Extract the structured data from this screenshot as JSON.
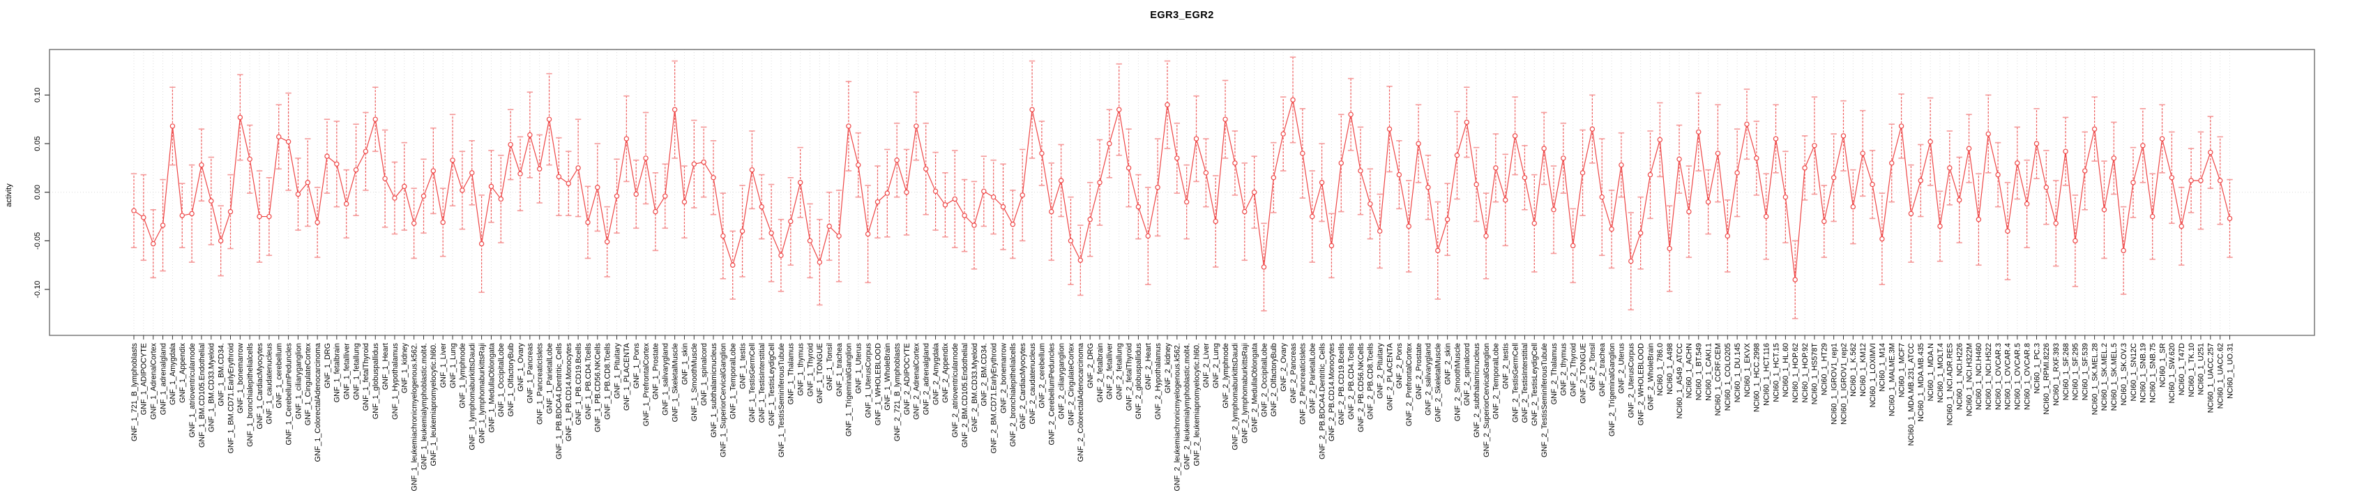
{
  "title": "EGR3_EGR2",
  "chart_data": {
    "type": "line",
    "title": "EGR3_EGR2",
    "xlabel": "",
    "ylabel": "activity",
    "ylim": [
      -0.147,
      0.147
    ],
    "yticks": [
      -0.1,
      -0.05,
      0.0,
      0.05,
      0.1
    ],
    "ytick_labels": [
      "-0.10",
      "-0.05",
      "0.00",
      "0.05",
      "0.10"
    ],
    "legend_position": "none",
    "grid": "dotted vertical gridline at every category; dotted horizontal line at zero",
    "marker": "open-circle",
    "line_color": "#ee4444",
    "errorbar_stem_color": "#ef5a5a",
    "errorbar_cap_color": "#f59999",
    "gridline_color": "#dcdcdc",
    "box_color": "#6e6e6e",
    "categories": [
      "GNF_1_721_B_lymphoblasts",
      "GNF_1_ADIPOCYTE",
      "GNF_1_AdrenalCortex",
      "GNF_1_adrenalgland",
      "GNF_1_Amygdala",
      "GNF_1_Appendix",
      "GNF_1_atrioventricularnode",
      "GNF_1_BM.CD105.Endothelial",
      "GNF_1_BM.CD33.Myeloid",
      "GNF_1_BM.CD34.",
      "GNF_1_BM.CD71.EarlyErythroid",
      "GNF_1_bonemarrow",
      "GNF_1_bronchialepithelialcells",
      "GNF_1_CardiacMyocytes",
      "GNF_1_caudatenucleus",
      "GNF_1_cerebellum",
      "GNF_1_CerebellumPeduncles",
      "GNF_1_ciliaryganglion",
      "GNF_1_CingulateCortex",
      "GNF_1_ColorectalAdenocarcinoma",
      "GNF_1_DRG",
      "GNF_1_fetalbrain",
      "GNF_1_fetalliver",
      "GNF_1_fetallung",
      "GNF_1_fetalThyroid",
      "GNF_1_globuspallidus",
      "GNF_1_Heart",
      "GNF_1_Hypothalamus",
      "GNF_1_kidney",
      "GNF_1_leukemiachronicmyelogenous.k562.",
      "GNF_1_leukemialymphoblastic.molt4.",
      "GNF_1_leukemiapromyelocytic.hl60.",
      "GNF_1_Liver",
      "GNF_1_Lung",
      "GNF_1_lymphnode",
      "GNF_1_lymphomaburkittsDaudi",
      "GNF_1_lymphomaburkittsRaji",
      "GNF_1_MedullaOblongata",
      "GNF_1_OccipitalLobe",
      "GNF_1_OlfactoryBulb",
      "GNF_1_Ovary",
      "GNF_1_Pancreas",
      "GNF_1_PancreaticIslets",
      "GNF_1_ParietalLobe",
      "GNF_1_PB.BDCA4.Dentritic_Cells",
      "GNF_1_PB.CD14.Monocytes",
      "GNF_1_PB.CD19.Bcells",
      "GNF_1_PB.CD4.Tcells",
      "GNF_1_PB.CD56.NKCells",
      "GNF_1_PB.CD8.Tcells",
      "GNF_1_Pituitary",
      "GNF_1_PLACENTA",
      "GNF_1_Pons",
      "GNF_1_PrefrontalCortex",
      "GNF_1_Prostate",
      "GNF_1_salivarygland",
      "GNF_1_SkeletalMuscle",
      "GNF_1_skin",
      "GNF_1_SmoothMuscle",
      "GNF_1_spinalcord",
      "GNF_1_subthalamicnucleus",
      "GNF_1_SuperiorCervicalGanglion",
      "GNF_1_TemporalLobe",
      "GNF_1_testis",
      "GNF_1_TestisGermCell",
      "GNF_1_TestisInterstitial",
      "GNF_1_TestisLeydigCell",
      "GNF_1_TestisSeminiferousTubule",
      "GNF_1_Thalamus",
      "GNF_1_thymus",
      "GNF_1_Thyroid",
      "GNF_1_TONGUE",
      "GNF_1_Tonsil",
      "GNF_1_trachea",
      "GNF_1_TrigeminalGanglion",
      "GNF_1_Uterus",
      "GNF_1_UterusCorpus",
      "GNF_1_WHOLEBLOOD",
      "GNF_1_WholeBrain",
      "GNF_2_721_B_lymphoblasts",
      "GNF_2_ADIPOCYTE",
      "GNF_2_AdrenalCortex",
      "GNF_2_adrenalgland",
      "GNF_2_Amygdala",
      "GNF_2_Appendix",
      "GNF_2_atrioventricularnode",
      "GNF_2_BM.CD105.Endothelial",
      "GNF_2_BM.CD33.Myeloid",
      "GNF_2_BM.CD34.",
      "GNF_2_BM.CD71.EarlyErythroid",
      "GNF_2_bonemarrow",
      "GNF_2_bronchialepithelialcells",
      "GNF_2_CardiacMyocytes",
      "GNF_2_caudatenucleus",
      "GNF_2_cerebellum",
      "GNF_2_CerebellumPeduncles",
      "GNF_2_ciliaryganglion",
      "GNF_2_CingulateCortex",
      "GNF_2_ColorectalAdenocarcinoma",
      "GNF_2_DRG",
      "GNF_2_fetalbrain",
      "GNF_2_fetalliver",
      "GNF_2_fetallung",
      "GNF_2_fetalThyroid",
      "GNF_2_globuspallidus",
      "GNF_2_Heart",
      "GNF_2_Hypothalamus",
      "GNF_2_kidney",
      "GNF_2_leukemiachronicmyelogenous.k562.",
      "GNF_2_leukemialymphoblastic.molt4.",
      "GNF_2_leukemiapromyelocytic.hl60.",
      "GNF_2_Liver",
      "GNF_2_Lung",
      "GNF_2_lymphnode",
      "GNF_2_lymphomaburkittsDaudi",
      "GNF_2_lymphomaburkittsRaji",
      "GNF_2_MedullaOblongata",
      "GNF_2_OccipitalLobe",
      "GNF_2_OlfactoryBulb",
      "GNF_2_Ovary",
      "GNF_2_Pancreas",
      "GNF_2_PancreaticIslets",
      "GNF_2_ParietalLobe",
      "GNF_2_PB.BDCA4.Dentritic_Cells",
      "GNF_2_PB.CD14.Monocytes",
      "GNF_2_PB.CD19.Bcells",
      "GNF_2_PB.CD4.Tcells",
      "GNF_2_PB.CD56.NKCells",
      "GNF_2_PB.CD8.Tcells",
      "GNF_2_Pituitary",
      "GNF_2_PLACENTA",
      "GNF_2_Pons",
      "GNF_2_PrefrontalCortex",
      "GNF_2_Prostate",
      "GNF_2_salivarygland",
      "GNF_2_SkeletalMuscle",
      "GNF_2_skin",
      "GNF_2_SmoothMuscle",
      "GNF_2_spinalcord",
      "GNF_2_subthalamicnucleus",
      "GNF_2_SuperiorCervicalGanglion",
      "GNF_2_TemporalLobe",
      "GNF_2_testis",
      "GNF_2_TestisGermCell",
      "GNF_2_TestisInterstitial",
      "GNF_2_TestisLeydigCell",
      "GNF_2_TestisSeminiferousTubule",
      "GNF_2_Thalamus",
      "GNF_2_thymus",
      "GNF_2_Thyroid",
      "GNF_2_TONGUE",
      "GNF_2_Tonsil",
      "GNF_2_trachea",
      "GNF_2_TrigeminalGanglion",
      "GNF_2_Uterus",
      "GNF_2_UterusCorpus",
      "GNF_2_WHOLEBLOOD",
      "GNF_2_WholeBrain",
      "NCI60_1_786.0",
      "NCI60_1_A498",
      "NCI60_1_A549_ATCC",
      "NCI60_1_ACHN",
      "NCI60_1_BT.549",
      "NCI60_1_CAKI.1",
      "NCI60_1_CCRF.CEM",
      "NCI60_1_COLO205",
      "NCI60_1_DU.145",
      "NCI60_1_EKVX",
      "NCI60_1_HCC.2998",
      "NCI60_1_HCT.116",
      "NCI60_1_HCT.15",
      "NCI60_1_HL.60",
      "NCI60_1_HOP.62",
      "NCI60_1_HOP.92",
      "NCI60_1_HS578T",
      "NCI60_1_HT29",
      "NCI60_1_IGROV1_rep1",
      "NCI60_1_IGROV1_rep2",
      "NCI60_1_K.562",
      "NCI60_1_KM12",
      "NCI60_1_LOXIMVI",
      "NCI60_1_M14",
      "NCI60_1_MALME.3M",
      "NCI60_1_MCF7",
      "NCI60_1_MDA.MB.231_ATCC",
      "NCI60_1_MDA.MB.435",
      "NCI60_1_MDA.N",
      "NCI60_1_MOLT.4",
      "NCI60_1_NCI.ADR.RES",
      "NCI60_1_NCI.H226",
      "NCI60_1_NCI.H322M",
      "NCI60_1_NCI.H460",
      "NCI60_1_NCI.H522",
      "NCI60_1_OVCAR.3",
      "NCI60_1_OVCAR.4",
      "NCI60_1_OVCAR.5",
      "NCI60_1_OVCAR.8",
      "NCI60_1_PC.3",
      "NCI60_1_RPMI.8226",
      "NCI60_1_RXF.393",
      "NCI60_1_SF.268",
      "NCI60_1_SF.295",
      "NCI60_1_SF.539",
      "NCI60_1_SK.MEL.28",
      "NCI60_1_SK.MEL.2",
      "NCI60_1_SK.MEL.5",
      "NCI60_1_SK.OV.3",
      "NCI60_1_SN12C",
      "NCI60_1_SNB.19",
      "NCI60_1_SNB.75",
      "NCI60_1_SR",
      "NCI60_1_SW.620",
      "NCI60_1_T47D",
      "NCI60_1_TK.10",
      "NCI60_1_U251",
      "NCI60_1_UACC.257",
      "NCI60_1_UACC.62",
      "NCI60_1_UO.31"
    ],
    "values": [
      -0.019,
      -0.026,
      -0.053,
      -0.034,
      0.068,
      -0.024,
      -0.022,
      0.028,
      -0.009,
      -0.05,
      -0.02,
      0.077,
      0.034,
      -0.025,
      -0.025,
      0.057,
      0.052,
      -0.002,
      0.01,
      -0.031,
      0.037,
      0.029,
      -0.012,
      0.023,
      0.042,
      0.075,
      0.014,
      -0.006,
      0.006,
      -0.032,
      -0.004,
      0.022,
      -0.031,
      0.033,
      0.002,
      0.02,
      -0.053,
      0.006,
      -0.007,
      0.049,
      0.019,
      0.059,
      0.024,
      0.075,
      0.016,
      0.009,
      0.025,
      -0.031,
      0.005,
      -0.051,
      -0.004,
      0.055,
      -0.002,
      0.035,
      -0.02,
      -0.004,
      0.085,
      -0.01,
      0.029,
      0.031,
      0.015,
      -0.045,
      -0.075,
      -0.04,
      0.023,
      -0.015,
      -0.042,
      -0.065,
      -0.03,
      0.01,
      -0.05,
      -0.072,
      -0.035,
      -0.045,
      0.068,
      0.028,
      -0.043,
      -0.01,
      -0.001,
      0.033,
      0.0,
      0.068,
      0.024,
      0.001,
      -0.013,
      -0.007,
      -0.024,
      -0.034,
      0.001,
      -0.005,
      -0.015,
      -0.033,
      -0.003,
      0.085,
      0.04,
      -0.02,
      0.012,
      -0.05,
      -0.07,
      -0.028,
      0.01,
      0.05,
      0.085,
      0.025,
      -0.015,
      -0.045,
      0.005,
      0.09,
      0.035,
      -0.01,
      0.055,
      0.02,
      -0.03,
      0.075,
      0.03,
      -0.02,
      0.0,
      -0.077,
      0.015,
      0.06,
      0.095,
      0.04,
      -0.025,
      0.01,
      -0.055,
      0.03,
      0.08,
      0.022,
      -0.012,
      -0.04,
      0.065,
      0.018,
      -0.035,
      0.05,
      0.005,
      -0.06,
      -0.028,
      0.038,
      0.072,
      0.008,
      -0.045,
      0.025,
      -0.008,
      0.058,
      0.015,
      -0.032,
      0.045,
      -0.018,
      0.035,
      -0.055,
      0.02,
      0.065,
      -0.005,
      -0.038,
      0.028,
      -0.071,
      -0.042,
      0.018,
      0.054,
      -0.058,
      0.034,
      -0.02,
      0.062,
      -0.01,
      0.04,
      -0.045,
      0.02,
      0.07,
      0.035,
      -0.025,
      0.055,
      -0.005,
      -0.09,
      0.025,
      0.048,
      -0.03,
      0.015,
      0.058,
      -0.015,
      0.04,
      0.008,
      -0.048,
      0.03,
      0.068,
      -0.022,
      0.012,
      0.052,
      -0.035,
      0.025,
      -0.008,
      0.045,
      -0.028,
      0.06,
      0.018,
      -0.04,
      0.03,
      -0.012,
      0.05,
      0.005,
      -0.032,
      0.042,
      -0.05,
      0.022,
      0.065,
      -0.018,
      0.035,
      -0.06,
      0.01,
      0.048,
      -0.025,
      0.055,
      0.015,
      -0.035,
      0.012,
      0.012,
      0.041,
      0.012,
      -0.027
    ],
    "errors": [
      0.038,
      0.044,
      0.035,
      0.047,
      0.04,
      0.033,
      0.05,
      0.037,
      0.045,
      0.036,
      0.038,
      0.044,
      0.035,
      0.047,
      0.04,
      0.033,
      0.05,
      0.037,
      0.045,
      0.036,
      0.038,
      0.044,
      0.035,
      0.047,
      0.04,
      0.033,
      0.05,
      0.037,
      0.045,
      0.036,
      0.038,
      0.044,
      0.035,
      0.047,
      0.04,
      0.033,
      0.05,
      0.037,
      0.045,
      0.036,
      0.038,
      0.044,
      0.035,
      0.047,
      0.04,
      0.033,
      0.05,
      0.037,
      0.045,
      0.036,
      0.038,
      0.044,
      0.035,
      0.047,
      0.04,
      0.033,
      0.05,
      0.037,
      0.045,
      0.036,
      0.038,
      0.044,
      0.035,
      0.047,
      0.04,
      0.033,
      0.05,
      0.037,
      0.045,
      0.036,
      0.038,
      0.044,
      0.035,
      0.047,
      0.046,
      0.033,
      0.05,
      0.037,
      0.045,
      0.038,
      0.044,
      0.035,
      0.047,
      0.04,
      0.033,
      0.05,
      0.037,
      0.045,
      0.036,
      0.038,
      0.044,
      0.035,
      0.047,
      0.05,
      0.033,
      0.05,
      0.037,
      0.045,
      0.036,
      0.038,
      0.044,
      0.035,
      0.047,
      0.04,
      0.033,
      0.05,
      0.05,
      0.045,
      0.036,
      0.038,
      0.044,
      0.035,
      0.047,
      0.04,
      0.033,
      0.05,
      0.037,
      0.045,
      0.036,
      0.038,
      0.044,
      0.046,
      0.047,
      0.04,
      0.033,
      0.05,
      0.037,
      0.045,
      0.036,
      0.038,
      0.044,
      0.035,
      0.047,
      0.04,
      0.033,
      0.05,
      0.037,
      0.045,
      0.036,
      0.038,
      0.044,
      0.035,
      0.047,
      0.04,
      0.033,
      0.05,
      0.037,
      0.045,
      0.036,
      0.038,
      0.044,
      0.035,
      0.06,
      0.04,
      0.033,
      0.05,
      0.037,
      0.045,
      0.038,
      0.044,
      0.035,
      0.047,
      0.04,
      0.033,
      0.05,
      0.037,
      0.045,
      0.036,
      0.038,
      0.044,
      0.035,
      0.047,
      0.04,
      0.033,
      0.05,
      0.037,
      0.045,
      0.036,
      0.038,
      0.044,
      0.035,
      0.047,
      0.04,
      0.033,
      0.05,
      0.037,
      0.045,
      0.036,
      0.038,
      0.044,
      0.035,
      0.047,
      0.04,
      0.033,
      0.05,
      0.037,
      0.045,
      0.036,
      0.038,
      0.044,
      0.035,
      0.047,
      0.04,
      0.033,
      0.05,
      0.037,
      0.045,
      0.036,
      0.038,
      0.044,
      0.035,
      0.047,
      0.04,
      0.033,
      0.05,
      0.037,
      0.045,
      0.04
    ]
  }
}
